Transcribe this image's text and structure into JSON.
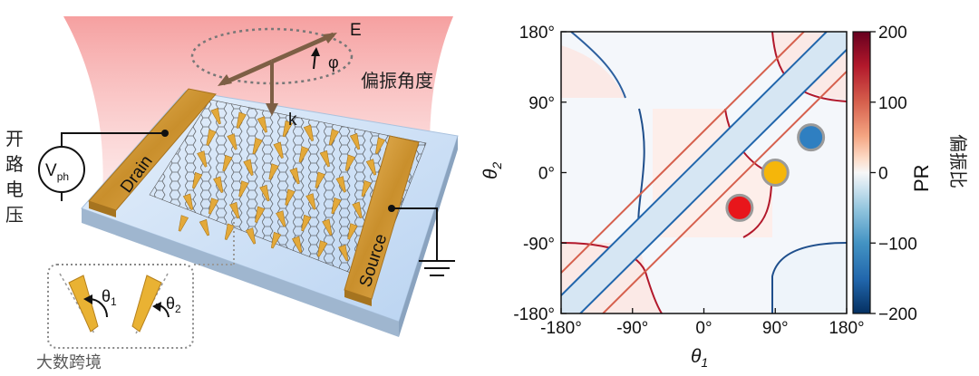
{
  "schematic": {
    "field_label": "E",
    "angle_label": "φ",
    "polarization_label": "偏振角度",
    "wavevector_label": "k",
    "open_circuit_label": [
      "开",
      "路",
      "电",
      "压"
    ],
    "voltage_symbol": "V",
    "voltage_subscript": "ph",
    "drain_label": "Drain",
    "source_label": "Source",
    "theta1_label": "θ",
    "theta1_sub": "1",
    "theta2_label": "θ",
    "theta2_sub": "2"
  },
  "colors": {
    "beam": "#f7a6a6",
    "electrode": "#d9a441",
    "substrate_top": "#cfe2f7",
    "dot_red": "#e8161b",
    "dot_yellow": "#f5b60a",
    "dot_blue": "#2f7fc1"
  },
  "chart_data": {
    "type": "heatmap",
    "title": "",
    "xlabel": "θ",
    "xlabel_sub": "1",
    "ylabel": "θ",
    "ylabel_sub": "2",
    "xlim": [
      -180,
      180
    ],
    "ylim": [
      -180,
      180
    ],
    "xticks": [
      "-180°",
      "-90°",
      "0°",
      "90°",
      "180°"
    ],
    "yticks": [
      "-180°",
      "-90°",
      "0°",
      "90°",
      "180°"
    ],
    "x_tick_values": [
      -180,
      -90,
      0,
      90,
      180
    ],
    "y_tick_values": [
      -180,
      -90,
      0,
      90,
      180
    ],
    "colorbar": {
      "label": "PR",
      "label_cn": "偏振比",
      "range": [
        -200,
        200
      ],
      "ticks": [
        "200",
        "100",
        "0",
        "−100",
        "−200"
      ],
      "tick_values": [
        200,
        100,
        0,
        -100,
        -200
      ],
      "colormap": "RdBu_r"
    },
    "markers": [
      {
        "name": "red",
        "x": 45,
        "y": -45,
        "color": "#e8161b"
      },
      {
        "name": "yellow",
        "x": 90,
        "y": 0,
        "color": "#f5b60a"
      },
      {
        "name": "blue",
        "x": 135,
        "y": 45,
        "color": "#2f7fc1"
      }
    ],
    "grid": false
  },
  "watermark": "大数跨境"
}
